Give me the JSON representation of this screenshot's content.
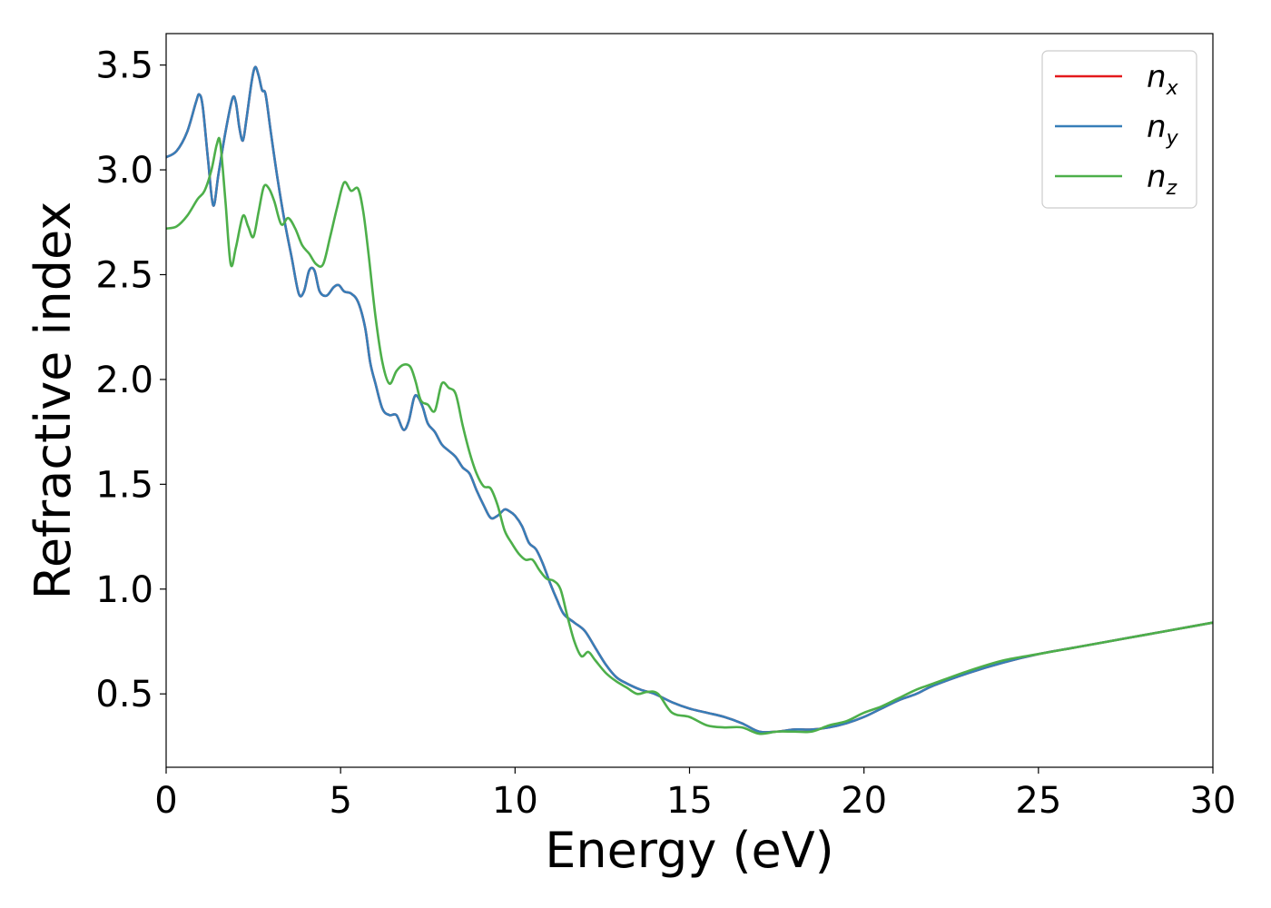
{
  "chart_data": {
    "type": "line",
    "xlabel": "Energy (eV)",
    "ylabel": "Refractive index",
    "xlim": [
      0,
      30
    ],
    "ylim": [
      0.15,
      3.65
    ],
    "xticks": [
      0,
      5,
      10,
      15,
      20,
      25,
      30
    ],
    "xtick_labels": [
      "0",
      "5",
      "10",
      "15",
      "20",
      "25",
      "30"
    ],
    "yticks": [
      0.5,
      1.0,
      1.5,
      2.0,
      2.5,
      3.0,
      3.5
    ],
    "ytick_labels": [
      "0.5",
      "1.0",
      "1.5",
      "2.0",
      "2.5",
      "3.0",
      "3.5"
    ],
    "grid": false,
    "legend_position": "top-right",
    "series": [
      {
        "name": "n_x",
        "label_main": "n",
        "label_sub": "x",
        "color": "#e41a1c",
        "x": [
          0,
          0.3,
          0.6,
          0.85,
          0.95,
          1.05,
          1.2,
          1.35,
          1.5,
          1.7,
          1.9,
          2.0,
          2.1,
          2.2,
          2.3,
          2.45,
          2.55,
          2.65,
          2.75,
          2.85,
          3.0,
          3.2,
          3.4,
          3.6,
          3.8,
          3.95,
          4.1,
          4.25,
          4.4,
          4.6,
          4.8,
          4.95,
          5.1,
          5.3,
          5.5,
          5.7,
          5.85,
          6.0,
          6.2,
          6.4,
          6.6,
          6.8,
          6.95,
          7.1,
          7.2,
          7.35,
          7.5,
          7.7,
          7.9,
          8.1,
          8.3,
          8.5,
          8.7,
          8.9,
          9.1,
          9.3,
          9.5,
          9.7,
          9.85,
          10.0,
          10.2,
          10.4,
          10.6,
          10.8,
          11.0,
          11.2,
          11.4,
          11.7,
          12.0,
          12.3,
          12.6,
          12.9,
          13.2,
          13.6,
          14.0,
          14.5,
          15.0,
          15.5,
          16.0,
          16.5,
          17.0,
          17.5,
          18.0,
          18.5,
          19.0,
          19.5,
          20.0,
          20.5,
          21.0,
          21.5,
          22.0,
          23.0,
          24.0,
          25.0,
          26.0,
          27.0,
          28.0,
          29.0,
          30.0
        ],
        "values": [
          3.06,
          3.09,
          3.18,
          3.32,
          3.36,
          3.3,
          3.05,
          2.83,
          2.98,
          3.18,
          3.34,
          3.32,
          3.2,
          3.14,
          3.24,
          3.42,
          3.49,
          3.45,
          3.38,
          3.36,
          3.18,
          2.95,
          2.75,
          2.58,
          2.41,
          2.42,
          2.52,
          2.52,
          2.42,
          2.4,
          2.44,
          2.45,
          2.42,
          2.41,
          2.37,
          2.25,
          2.08,
          1.98,
          1.86,
          1.83,
          1.83,
          1.76,
          1.8,
          1.91,
          1.92,
          1.87,
          1.79,
          1.75,
          1.69,
          1.66,
          1.63,
          1.58,
          1.55,
          1.47,
          1.4,
          1.34,
          1.35,
          1.38,
          1.37,
          1.35,
          1.3,
          1.22,
          1.19,
          1.12,
          1.03,
          0.95,
          0.88,
          0.84,
          0.8,
          0.72,
          0.64,
          0.58,
          0.55,
          0.52,
          0.5,
          0.46,
          0.43,
          0.41,
          0.39,
          0.36,
          0.32,
          0.32,
          0.33,
          0.33,
          0.34,
          0.36,
          0.39,
          0.43,
          0.47,
          0.5,
          0.54,
          0.6,
          0.65,
          0.69,
          0.72,
          0.75,
          0.78,
          0.81,
          0.84
        ]
      },
      {
        "name": "n_y",
        "label_main": "n",
        "label_sub": "y",
        "color": "#377eb8",
        "x": [
          0,
          0.3,
          0.6,
          0.85,
          0.95,
          1.05,
          1.2,
          1.35,
          1.5,
          1.7,
          1.9,
          2.0,
          2.1,
          2.2,
          2.3,
          2.45,
          2.55,
          2.65,
          2.75,
          2.85,
          3.0,
          3.2,
          3.4,
          3.6,
          3.8,
          3.95,
          4.1,
          4.25,
          4.4,
          4.6,
          4.8,
          4.95,
          5.1,
          5.3,
          5.5,
          5.7,
          5.85,
          6.0,
          6.2,
          6.4,
          6.6,
          6.8,
          6.95,
          7.1,
          7.2,
          7.35,
          7.5,
          7.7,
          7.9,
          8.1,
          8.3,
          8.5,
          8.7,
          8.9,
          9.1,
          9.3,
          9.5,
          9.7,
          9.85,
          10.0,
          10.2,
          10.4,
          10.6,
          10.8,
          11.0,
          11.2,
          11.4,
          11.7,
          12.0,
          12.3,
          12.6,
          12.9,
          13.2,
          13.6,
          14.0,
          14.5,
          15.0,
          15.5,
          16.0,
          16.5,
          17.0,
          17.5,
          18.0,
          18.5,
          19.0,
          19.5,
          20.0,
          20.5,
          21.0,
          21.5,
          22.0,
          23.0,
          24.0,
          25.0,
          26.0,
          27.0,
          28.0,
          29.0,
          30.0
        ],
        "values": [
          3.06,
          3.09,
          3.18,
          3.32,
          3.36,
          3.3,
          3.05,
          2.83,
          2.98,
          3.18,
          3.34,
          3.32,
          3.2,
          3.14,
          3.24,
          3.42,
          3.49,
          3.45,
          3.38,
          3.36,
          3.18,
          2.95,
          2.75,
          2.58,
          2.41,
          2.42,
          2.52,
          2.52,
          2.42,
          2.4,
          2.44,
          2.45,
          2.42,
          2.41,
          2.37,
          2.25,
          2.08,
          1.98,
          1.86,
          1.83,
          1.83,
          1.76,
          1.8,
          1.91,
          1.92,
          1.87,
          1.79,
          1.75,
          1.69,
          1.66,
          1.63,
          1.58,
          1.55,
          1.47,
          1.4,
          1.34,
          1.35,
          1.38,
          1.37,
          1.35,
          1.3,
          1.22,
          1.19,
          1.12,
          1.03,
          0.95,
          0.88,
          0.84,
          0.8,
          0.72,
          0.64,
          0.58,
          0.55,
          0.52,
          0.5,
          0.46,
          0.43,
          0.41,
          0.39,
          0.36,
          0.32,
          0.32,
          0.33,
          0.33,
          0.34,
          0.36,
          0.39,
          0.43,
          0.47,
          0.5,
          0.54,
          0.6,
          0.65,
          0.69,
          0.72,
          0.75,
          0.78,
          0.81,
          0.84
        ]
      },
      {
        "name": "n_z",
        "label_main": "n",
        "label_sub": "z",
        "color": "#4daf4a",
        "x": [
          0,
          0.3,
          0.6,
          0.9,
          1.1,
          1.3,
          1.45,
          1.55,
          1.7,
          1.85,
          2.0,
          2.2,
          2.35,
          2.5,
          2.65,
          2.8,
          2.95,
          3.1,
          3.3,
          3.5,
          3.7,
          3.9,
          4.1,
          4.3,
          4.5,
          4.7,
          4.9,
          5.1,
          5.3,
          5.5,
          5.65,
          5.8,
          6.0,
          6.2,
          6.4,
          6.6,
          6.8,
          7.0,
          7.15,
          7.3,
          7.5,
          7.7,
          7.9,
          8.1,
          8.3,
          8.5,
          8.7,
          8.9,
          9.1,
          9.3,
          9.5,
          9.7,
          9.9,
          10.1,
          10.3,
          10.5,
          10.7,
          10.9,
          11.1,
          11.3,
          11.5,
          11.7,
          11.9,
          12.1,
          12.3,
          12.6,
          12.9,
          13.2,
          13.5,
          13.8,
          14.1,
          14.5,
          15.0,
          15.5,
          16.0,
          16.5,
          17.0,
          17.5,
          18.0,
          18.5,
          19.0,
          19.5,
          20.0,
          20.5,
          21.0,
          21.5,
          22.0,
          23.0,
          24.0,
          25.0,
          26.0,
          27.0,
          28.0,
          29.0,
          30.0
        ],
        "values": [
          2.72,
          2.73,
          2.78,
          2.86,
          2.9,
          3.0,
          3.12,
          3.13,
          2.85,
          2.55,
          2.63,
          2.78,
          2.73,
          2.68,
          2.8,
          2.92,
          2.91,
          2.85,
          2.74,
          2.77,
          2.72,
          2.64,
          2.6,
          2.55,
          2.55,
          2.68,
          2.82,
          2.94,
          2.9,
          2.91,
          2.8,
          2.6,
          2.3,
          2.08,
          1.98,
          2.04,
          2.07,
          2.06,
          1.99,
          1.9,
          1.88,
          1.85,
          1.98,
          1.96,
          1.93,
          1.78,
          1.65,
          1.55,
          1.49,
          1.48,
          1.4,
          1.28,
          1.22,
          1.17,
          1.14,
          1.14,
          1.09,
          1.05,
          1.04,
          1.0,
          0.87,
          0.75,
          0.68,
          0.7,
          0.66,
          0.6,
          0.56,
          0.53,
          0.5,
          0.51,
          0.5,
          0.41,
          0.39,
          0.35,
          0.34,
          0.34,
          0.31,
          0.32,
          0.32,
          0.32,
          0.35,
          0.37,
          0.41,
          0.44,
          0.48,
          0.52,
          0.55,
          0.61,
          0.66,
          0.69,
          0.72,
          0.75,
          0.78,
          0.81,
          0.84
        ]
      }
    ]
  }
}
